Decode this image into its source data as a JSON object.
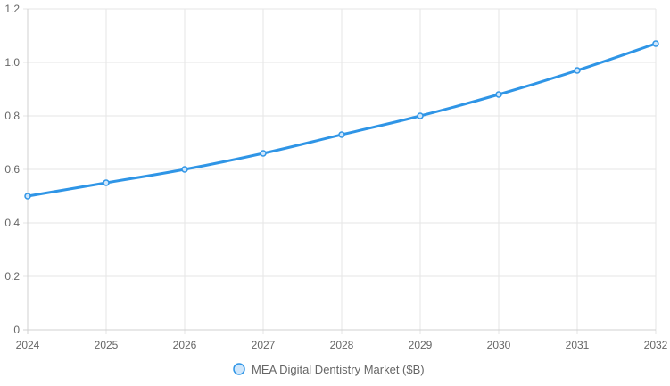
{
  "chart_data": {
    "type": "line",
    "title": "",
    "xlabel": "",
    "ylabel": "",
    "categories": [
      "2024",
      "2025",
      "2026",
      "2027",
      "2028",
      "2029",
      "2030",
      "2031",
      "2032"
    ],
    "series": [
      {
        "name": "MEA Digital Dentistry Market ($B)",
        "values": [
          0.5,
          0.55,
          0.6,
          0.66,
          0.73,
          0.8,
          0.88,
          0.97,
          1.07
        ],
        "color": "#2f95e6",
        "point_fill": "#cfe6fb"
      }
    ],
    "ylim": [
      0,
      1.2
    ],
    "yticks": [
      "0",
      "0.2",
      "0.4",
      "0.6",
      "0.8",
      "1.0",
      "1.2"
    ],
    "grid": true,
    "legend": "bottom-center"
  }
}
